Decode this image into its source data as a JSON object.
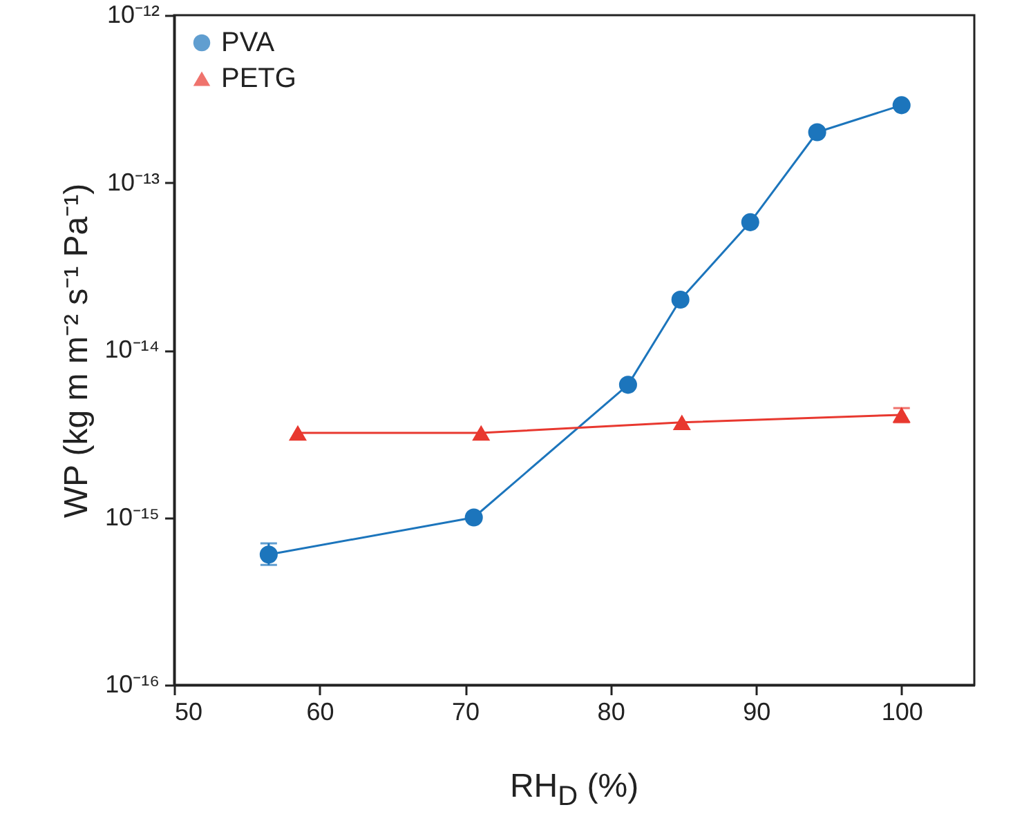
{
  "chart_data": {
    "type": "line",
    "xlabel": "RH$_{D}$ (%)",
    "ylabel": "WP (kg m m⁻² s⁻¹ Pa⁻¹)",
    "log": "y",
    "grid": false,
    "legend": "top left",
    "xlim": [
      50,
      105
    ],
    "xticks": [
      50,
      60,
      70,
      80,
      90,
      100
    ],
    "ylim": [
      1e-16,
      1e-12
    ],
    "yticks": [
      {
        "value": 1e-16,
        "label": "10⁻¹⁶"
      },
      {
        "value": 1e-15,
        "label": "10⁻¹⁵"
      },
      {
        "value": 1e-14,
        "label": "10⁻¹⁴"
      },
      {
        "value": 1e-13,
        "label": "10⁻¹³"
      },
      {
        "value": 1e-12,
        "label": "10⁻¹²"
      }
    ],
    "series": [
      {
        "name": "PVA",
        "color": "#1c75bc",
        "marker": "circle",
        "x": [
          56.5,
          70.6,
          81.2,
          84.8,
          89.6,
          94.2,
          100
        ],
        "values": [
          6e-16,
          1e-15,
          6.2e-15,
          2e-14,
          5.8e-14,
          2e-13,
          2.9e-13
        ],
        "errors": [
          [
            5.2e-16,
            7e-16
          ],
          null,
          null,
          null,
          null,
          null,
          null
        ]
      },
      {
        "name": "PETG",
        "color": "#e8382f",
        "marker": "triangle",
        "x": [
          58.5,
          71.1,
          84.9,
          100
        ],
        "values": [
          3.2e-15,
          3.2e-15,
          3.7e-15,
          4.1e-15
        ],
        "errors": [
          null,
          null,
          null,
          [
            3.7e-15,
            4.5e-15
          ]
        ]
      }
    ]
  }
}
